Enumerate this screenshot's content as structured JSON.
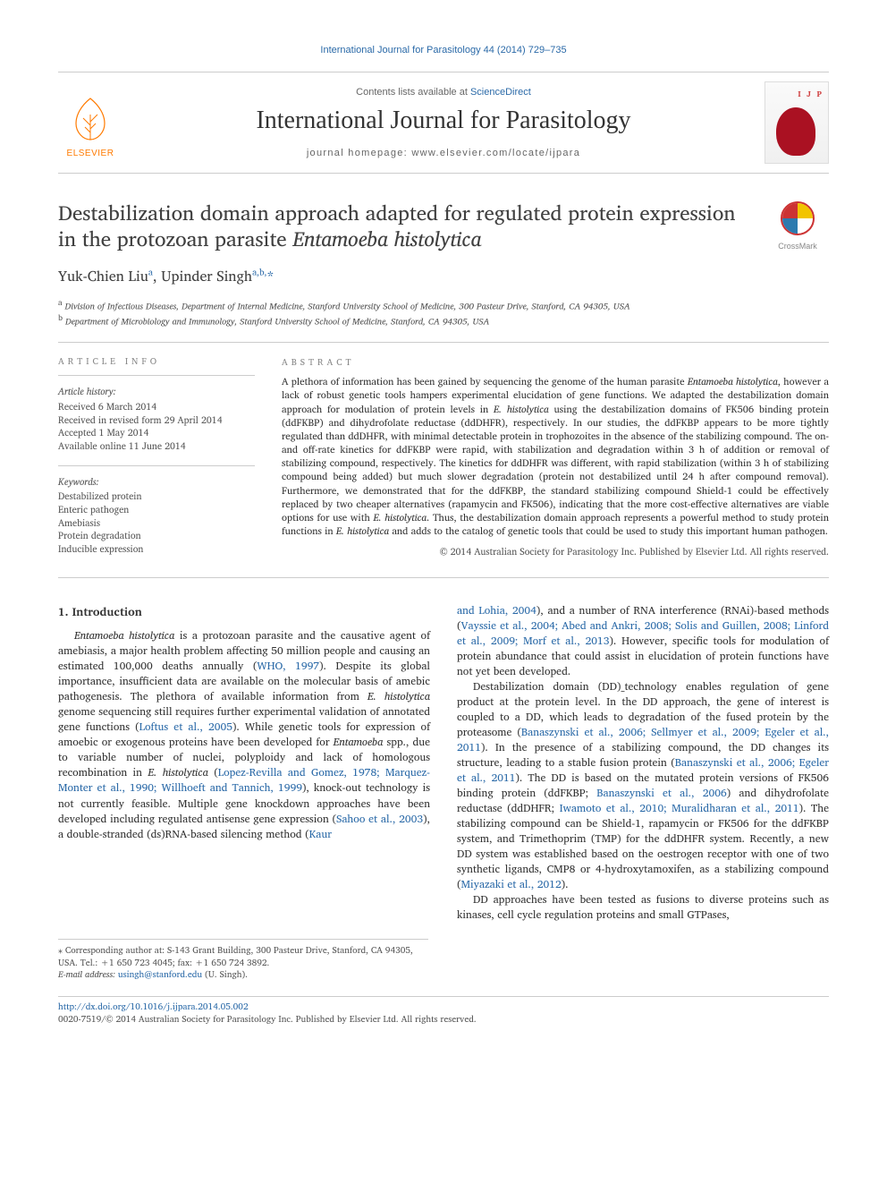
{
  "running_head": "International Journal for Parasitology 44 (2014) 729–735",
  "publisher": {
    "name": "ELSEVIER",
    "logo_color": "#ff7a00"
  },
  "head": {
    "lists_available": "Contents lists available at ",
    "lists_link": "ScienceDirect",
    "journal_title": "International Journal for Parasitology",
    "homepage_label": "journal homepage: www.elsevier.com/locate/ijpara"
  },
  "cover": {
    "ijp_text": "I J P",
    "blob_color": "#aa1122"
  },
  "crossmark_label": "CrossMark",
  "title_html": "Destabilization domain approach adapted for regulated protein expression in the protozoan parasite <em>Entamoeba histolytica</em>",
  "authors_html": "Yuk-Chien Liu<sup>a</sup>, Upinder Singh<sup>a,b,</sup><span class='corr'>*</span>",
  "affiliations": [
    {
      "sup": "a",
      "text": "Division of Infectious Diseases, Department of Internal Medicine, Stanford University School of Medicine, 300 Pasteur Drive, Stanford, CA 94305, USA"
    },
    {
      "sup": "b",
      "text": "Department of Microbiology and Immunology, Stanford University School of Medicine, Stanford, CA 94305, USA"
    }
  ],
  "article_info": {
    "heading": "ARTICLE INFO",
    "history_label": "Article history:",
    "history": [
      "Received 6 March 2014",
      "Received in revised form 29 April 2014",
      "Accepted 1 May 2014",
      "Available online 11 June 2014"
    ],
    "keywords_label": "Keywords:",
    "keywords": [
      "Destabilized protein",
      "Enteric pathogen",
      "Amebiasis",
      "Protein degradation",
      "Inducible expression"
    ]
  },
  "abstract": {
    "heading": "ABSTRACT",
    "text_html": "A plethora of information has been gained by sequencing the genome of the human parasite <em>Entamoeba histolytica</em>, however a lack of robust genetic tools hampers experimental elucidation of gene functions. We adapted the destabilization domain approach for modulation of protein levels in <em>E. histolytica</em> using the destabilization domains of FK506 binding protein (ddFKBP) and dihydrofolate reductase (ddDHFR), respectively. In our studies, the ddFKBP appears to be more tightly regulated than ddDHFR, with minimal detectable protein in trophozoites in the absence of the stabilizing compound. The on- and off-rate kinetics for ddFKBP were rapid, with stabilization and degradation within 3 h of addition or removal of stabilizing compound, respectively. The kinetics for ddDHFR was different, with rapid stabilization (within 3 h of stabilizing compound being added) but much slower degradation (protein not destabilized until 24 h after compound removal). Furthermore, we demonstrated that for the ddFKBP, the standard stabilizing compound Shield-1 could be effectively replaced by two cheaper alternatives (rapamycin and FK506), indicating that the more cost-effective alternatives are viable options for use with <em>E. histolytica</em>. Thus, the destabilization domain approach represents a powerful method to study protein functions in <em>E. histolytica</em> and adds to the catalog of genetic tools that could be used to study this important human pathogen.",
    "copyright": "© 2014 Australian Society for Parasitology Inc. Published by Elsevier Ltd. All rights reserved."
  },
  "section_heading": "1. Introduction",
  "col1_html": "<em>Entamoeba histolytica</em> is a protozoan parasite and the causative agent of amebiasis, a major health problem affecting 50 million people and causing an estimated 100,000 deaths annually (<a>WHO, 1997</a>). Despite its global importance, insufficient data are available on the molecular basis of amebic pathogenesis. The plethora of available information from <em>E. histolytica</em> genome sequencing still requires further experimental validation of annotated gene functions (<a>Loftus et al., 2005</a>). While genetic tools for expression of amoebic or exogenous proteins have been developed for <em>Entamoeba</em> spp., due to variable number of nuclei, polyploidy and lack of homologous recombination in <em>E. histolytica</em> (<a>Lopez-Revilla and Gomez, 1978; Marquez-Monter et al., 1990; Willhoeft and Tannich, 1999</a>), knock-out technology is not currently feasible. Multiple gene knockdown approaches have been developed including regulated antisense gene expression (<a>Sahoo et al., 2003</a>), a double-stranded (ds)RNA-based silencing method (<a>Kaur</a>",
  "col2a_html": "<a>and Lohia, 2004</a>), and a number of RNA interference (RNAi)-based methods (<a>Vayssie et al., 2004; Abed and Ankri, 2008; Solis and Guillen, 2008; Linford et al., 2009; Morf et al., 2013</a>). However, specific tools for modulation of protein abundance that could assist in elucidation of protein functions have not yet been developed.",
  "col2b_html": "Destabilization domain (DD)_technology enables regulation of gene product at the protein level. In the DD approach, the gene of interest is coupled to a DD, which leads to degradation of the fused protein by the proteasome (<a>Banaszynski et al., 2006; Sellmyer et al., 2009; Egeler et al., 2011</a>). In the presence of a stabilizing compound, the DD changes its structure, leading to a stable fusion protein (<a>Banaszynski et al., 2006; Egeler et al., 2011</a>). The DD is based on the mutated protein versions of FK506 binding protein (ddFKBP; <a>Banaszynski et al., 2006</a>) and dihydrofolate reductase (ddDHFR; <a>Iwamoto et al., 2010; Muralidharan et al., 2011</a>). The stabilizing compound can be Shield-1, rapamycin or FK506 for the ddFKBP system, and Trimethoprim (TMP) for the ddDHFR system. Recently, a new DD system was established based on the oestrogen receptor with one of two synthetic ligands, CMP8 or 4-hydroxytamoxifen, as a stabilizing compound (<a>Miyazaki et al., 2012</a>).",
  "col2c_html": "DD approaches have been tested as fusions to diverse proteins such as kinases, cell cycle regulation proteins and small GTPases,",
  "footnotes": {
    "corr": "⁎ Corresponding author at: S-143 Grant Building, 300 Pasteur Drive, Stanford, CA 94305, USA. Tel.: +1 650 723 4045; fax: +1 650 724 3892.",
    "email_label": "E-mail address: ",
    "email": "usingh@stanford.edu",
    "email_tail": " (U. Singh)."
  },
  "footer": {
    "doi": "http://dx.doi.org/10.1016/j.ijpara.2014.05.002",
    "issn_line": "0020-7519/© 2014 Australian Society for Parasitology Inc. Published by Elsevier Ltd. All rights reserved."
  },
  "colors": {
    "link": "#2b6aa8",
    "text": "#333333",
    "muted": "#666666",
    "line": "#cccccc",
    "elsevier": "#ff7a00"
  }
}
